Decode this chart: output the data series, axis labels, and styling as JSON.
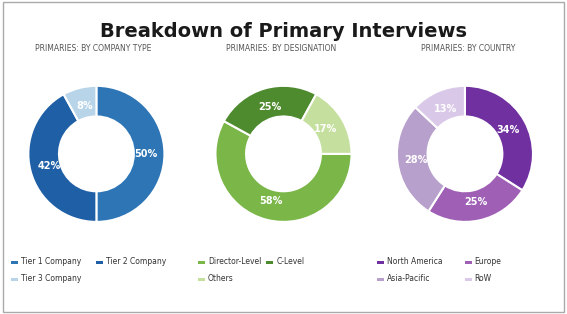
{
  "title": "Breakdown of Primary Interviews",
  "title_fontsize": 14,
  "background_color": "#ffffff",
  "border_color": "#cccccc",
  "chart1": {
    "subtitle": "PRIMARIES: BY COMPANY TYPE",
    "values": [
      50,
      42,
      8
    ],
    "labels": [
      "50%",
      "42%",
      "8%"
    ],
    "colors": [
      "#2e75b6",
      "#1f5fa6",
      "#b8d4e8"
    ],
    "legend_labels": [
      "Tier 1 Company",
      "Tier 2 Company",
      "Tier 3 Company"
    ],
    "startangle": 90
  },
  "chart2": {
    "subtitle": "PRIMARIES: BY DESIGNATION",
    "values": [
      58,
      25,
      17
    ],
    "labels": [
      "58%",
      "25%",
      "17%"
    ],
    "colors": [
      "#7ab648",
      "#4e8a2e",
      "#c5e09e"
    ],
    "legend_labels": [
      "Director-Level",
      "C-Level",
      "Others"
    ],
    "startangle": 0
  },
  "chart3": {
    "subtitle": "PRIMARIES: BY COUNTRY",
    "values": [
      34,
      25,
      28,
      13
    ],
    "labels": [
      "34%",
      "25%",
      "28%",
      "13%"
    ],
    "colors": [
      "#7030a0",
      "#9e5fb5",
      "#b8a0cc",
      "#d9c8e8"
    ],
    "legend_labels": [
      "North America",
      "Europe",
      "Asia-Pacific",
      "RoW"
    ],
    "startangle": 90
  }
}
